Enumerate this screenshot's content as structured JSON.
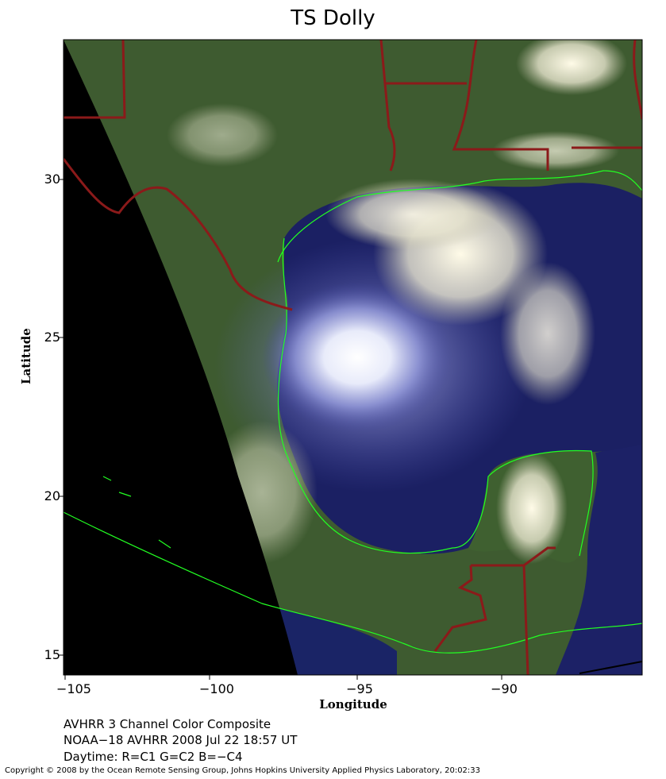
{
  "title": "TS Dolly",
  "axes": {
    "xlabel": "Longitude",
    "ylabel": "Latitude",
    "xticks": [
      "−105",
      "−100",
      "−95",
      "−90"
    ],
    "yticks": [
      "30",
      "25",
      "20",
      "15"
    ]
  },
  "caption": {
    "line1": "AVHRR 3 Channel Color Composite",
    "line2": "NOAA−18 AVHRR 2008 Jul 22 18:57 UT",
    "line3": "Daytime: R=C1 G=C2 B=−C4"
  },
  "copyright": "Copyright © 2008 by the Ocean Remote Sensing Group, Johns Hopkins University Applied Physics Laboratory, 20:02:33",
  "colors": {
    "land": "#3d5a2e",
    "ocean": "#1a1f5e",
    "cloud": "#f2f4fb",
    "border": "#8b1a1a",
    "coast": "#22ff22",
    "nodata": "#000000"
  }
}
